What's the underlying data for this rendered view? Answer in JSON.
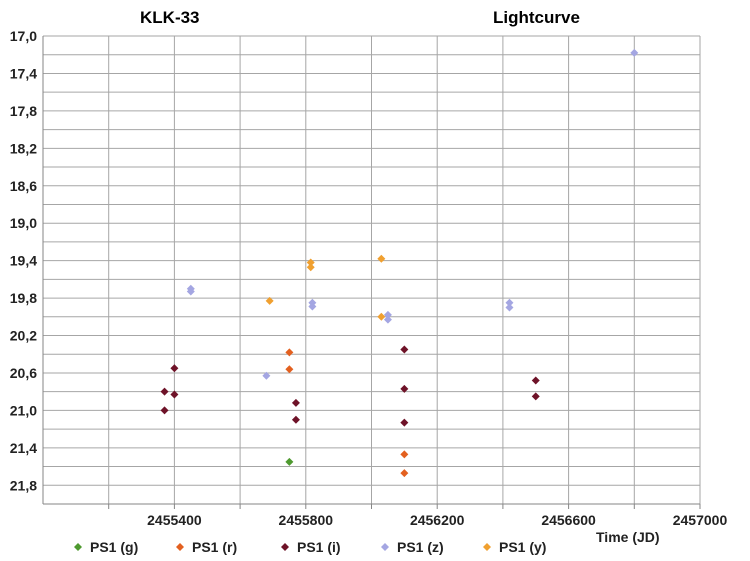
{
  "chart_data": {
    "type": "scatter",
    "title_left": "KLK-33",
    "title_right": "Lightcurve",
    "xlabel": "Time (JD)",
    "ylabel": "",
    "xlim": [
      2455000,
      2457000
    ],
    "ylim": [
      17.0,
      22.0
    ],
    "y_reversed": true,
    "grid": true,
    "x_ticks": [
      2455400,
      2455800,
      2456200,
      2456600,
      2457000
    ],
    "x_tick_labels": [
      "2455400",
      "2455800",
      "2456200",
      "2456600",
      "2457000"
    ],
    "y_ticks": [
      17.0,
      17.4,
      17.8,
      18.2,
      18.6,
      19.0,
      19.4,
      19.8,
      20.2,
      20.6,
      21.0,
      21.4,
      21.8
    ],
    "y_tick_labels": [
      "17,0",
      "17,4",
      "17,8",
      "18,2",
      "18,6",
      "19,0",
      "19,4",
      "19,8",
      "20,2",
      "20,6",
      "21,0",
      "21,4",
      "21,8"
    ],
    "legend_position": "bottom",
    "series": [
      {
        "name": "PS1 (g)",
        "color": "#4e9a2f",
        "points": [
          [
            2455750,
            21.55
          ]
        ]
      },
      {
        "name": "PS1 (r)",
        "color": "#e3601f",
        "points": [
          [
            2455750,
            20.38
          ],
          [
            2455750,
            20.56
          ],
          [
            2456100,
            21.47
          ],
          [
            2456100,
            21.67
          ]
        ]
      },
      {
        "name": "PS1 (i)",
        "color": "#6e1228",
        "points": [
          [
            2455370,
            20.8
          ],
          [
            2455370,
            21.0
          ],
          [
            2455400,
            20.55
          ],
          [
            2455400,
            20.83
          ],
          [
            2455770,
            20.92
          ],
          [
            2455770,
            21.1
          ],
          [
            2456100,
            20.35
          ],
          [
            2456100,
            20.77
          ],
          [
            2456100,
            21.13
          ],
          [
            2456500,
            20.68
          ],
          [
            2456500,
            20.85
          ]
        ]
      },
      {
        "name": "PS1 (z)",
        "color": "#a4a6e2",
        "points": [
          [
            2455450,
            19.7
          ],
          [
            2455450,
            19.73
          ],
          [
            2455680,
            20.63
          ],
          [
            2455820,
            19.85
          ],
          [
            2455820,
            19.89
          ],
          [
            2456050,
            19.98
          ],
          [
            2456050,
            20.03
          ],
          [
            2456420,
            19.85
          ],
          [
            2456420,
            19.9
          ],
          [
            2456800,
            17.18
          ]
        ]
      },
      {
        "name": "PS1 (y)",
        "color": "#f0a030",
        "points": [
          [
            2455690,
            19.83
          ],
          [
            2455815,
            19.42
          ],
          [
            2455815,
            19.47
          ],
          [
            2456030,
            19.38
          ],
          [
            2456030,
            20.0
          ]
        ]
      }
    ]
  }
}
